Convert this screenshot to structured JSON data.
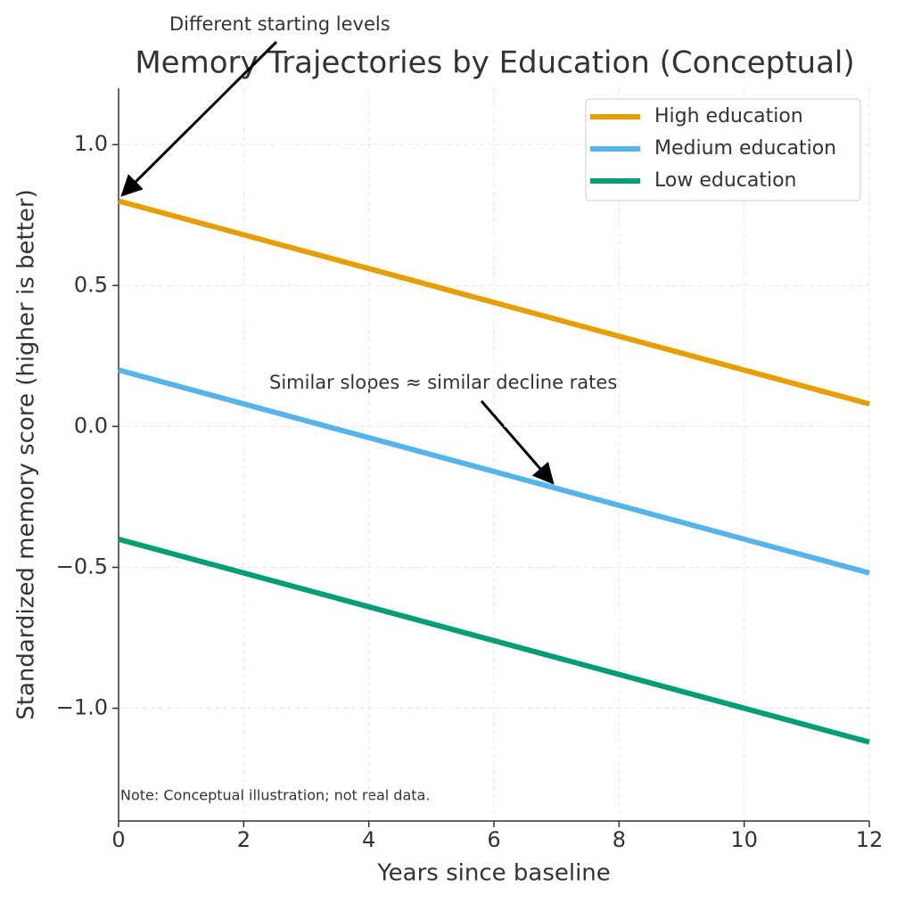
{
  "chart_data": {
    "type": "line",
    "title": "Memory Trajectories by Education (Conceptual)",
    "x_label": "Years since baseline",
    "y_label": "Standardized memory score (higher is better)",
    "x": [
      0,
      12
    ],
    "series": [
      {
        "name": "High education",
        "color": "#E69F00",
        "values": [
          0.8,
          0.08
        ]
      },
      {
        "name": "Medium education",
        "color": "#56B4E9",
        "values": [
          0.2,
          -0.52
        ]
      },
      {
        "name": "Low education",
        "color": "#009E73",
        "values": [
          -0.4,
          -1.12
        ]
      }
    ],
    "xlim": [
      0,
      12
    ],
    "xticks": [
      0,
      2,
      4,
      6,
      8,
      10,
      12
    ],
    "ylim": [
      -1.4,
      1.2
    ],
    "yticks": [
      {
        "value": -1.0,
        "label": "−1.0"
      },
      {
        "value": -0.5,
        "label": "−0.5"
      },
      {
        "value": 0.0,
        "label": "0.0"
      },
      0.5,
      {
        "value": 1.0,
        "label": "1.0"
      }
    ],
    "grid": true,
    "legend": "upper right",
    "annotations": [
      "Different starting levels",
      "Similar slopes ≈ similar decline rates"
    ],
    "note": "Note: Conceptual illustration; not real data."
  }
}
